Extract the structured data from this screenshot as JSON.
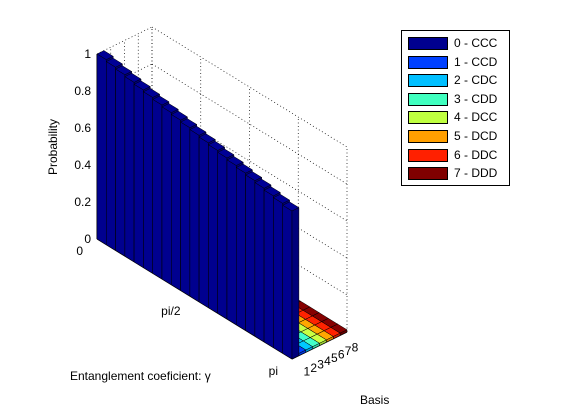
{
  "chart_data": {
    "type": "bar3d",
    "title": "",
    "ylabel": "Probability",
    "xlabel": "Entanglement coeficient: γ",
    "zlabel": "Basis",
    "z_ticks": [
      "0",
      "0.2",
      "0.4",
      "0.6",
      "0.8",
      "1"
    ],
    "z_range": [
      0,
      1
    ],
    "gamma_ticks": [
      "0",
      "pi/2",
      "pi"
    ],
    "basis_ticks": [
      "1",
      "2",
      "3",
      "4",
      "5",
      "6",
      "7",
      "8"
    ],
    "gamma_steps": 21,
    "series": [
      {
        "name": "0 - CCC",
        "color": "#00008F",
        "prob_start": 1.0,
        "prob_end": 0.8
      },
      {
        "name": "1 - CCD",
        "color": "#0040FF",
        "prob_start": 0.0,
        "prob_end": 0.0
      },
      {
        "name": "2 - CDC",
        "color": "#00BFFF",
        "prob_start": 0.0,
        "prob_end": 0.0
      },
      {
        "name": "3 - CDD",
        "color": "#40FFBF",
        "prob_start": 0.0,
        "prob_end": 0.0
      },
      {
        "name": "4 - DCC",
        "color": "#BFFF40",
        "prob_start": 0.0,
        "prob_end": 0.0
      },
      {
        "name": "5 - DCD",
        "color": "#FF9F00",
        "prob_start": 0.0,
        "prob_end": 0.0
      },
      {
        "name": "6 - DDC",
        "color": "#FF2000",
        "prob_start": 0.0,
        "prob_end": 0.0
      },
      {
        "name": "7 - DDD",
        "color": "#800000",
        "prob_start": 0.0,
        "prob_end": 0.0
      }
    ]
  }
}
